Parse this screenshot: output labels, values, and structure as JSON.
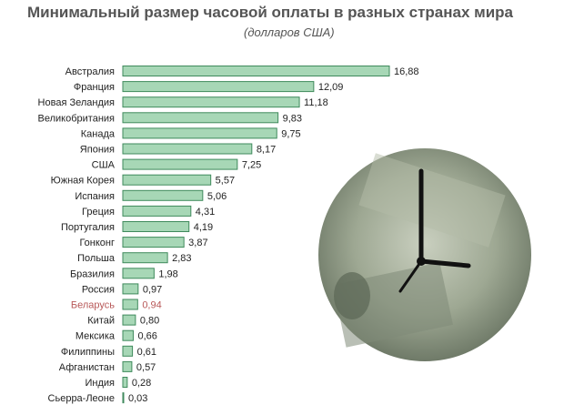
{
  "title": "Минимальный размер часовой оплаты в разных странах мира",
  "subtitle": "(долларов США)",
  "chart_data": {
    "type": "bar",
    "orientation": "horizontal",
    "title": "Минимальный размер часовой оплаты в разных странах мира",
    "subtitle": "(долларов США)",
    "categories": [
      "Австралия",
      "Франция",
      "Новая Зеландия",
      "Великобритания",
      "Канада",
      "Япония",
      "США",
      "Южная Корея",
      "Испания",
      "Греция",
      "Португалия",
      "Гонконг",
      "Польша",
      "Бразилия",
      "Россия",
      "Беларусь",
      "Китай",
      "Мексика",
      "Филиппины",
      "Афганистан",
      "Индия",
      "Сьерра-Леоне"
    ],
    "values": [
      16.88,
      12.09,
      11.18,
      9.83,
      9.75,
      8.17,
      7.25,
      5.57,
      5.06,
      4.31,
      4.19,
      3.87,
      2.83,
      1.98,
      0.97,
      0.94,
      0.8,
      0.66,
      0.61,
      0.57,
      0.28,
      0.03
    ],
    "value_labels": [
      "16,88",
      "12,09",
      "11,18",
      "9,83",
      "9,75",
      "8,17",
      "7,25",
      "5,57",
      "5,06",
      "4,31",
      "4,19",
      "3,87",
      "2,83",
      "1,98",
      "0,97",
      "0,94",
      "0,80",
      "0,66",
      "0,61",
      "0,57",
      "0,28",
      "0,03"
    ],
    "highlight": "Беларусь",
    "xlim": [
      0,
      16.88
    ],
    "grid": false,
    "colors": {
      "bar_fill": "#a7d7b6",
      "bar_stroke": "#3f8a5c",
      "highlight_text": "#b85858"
    }
  }
}
